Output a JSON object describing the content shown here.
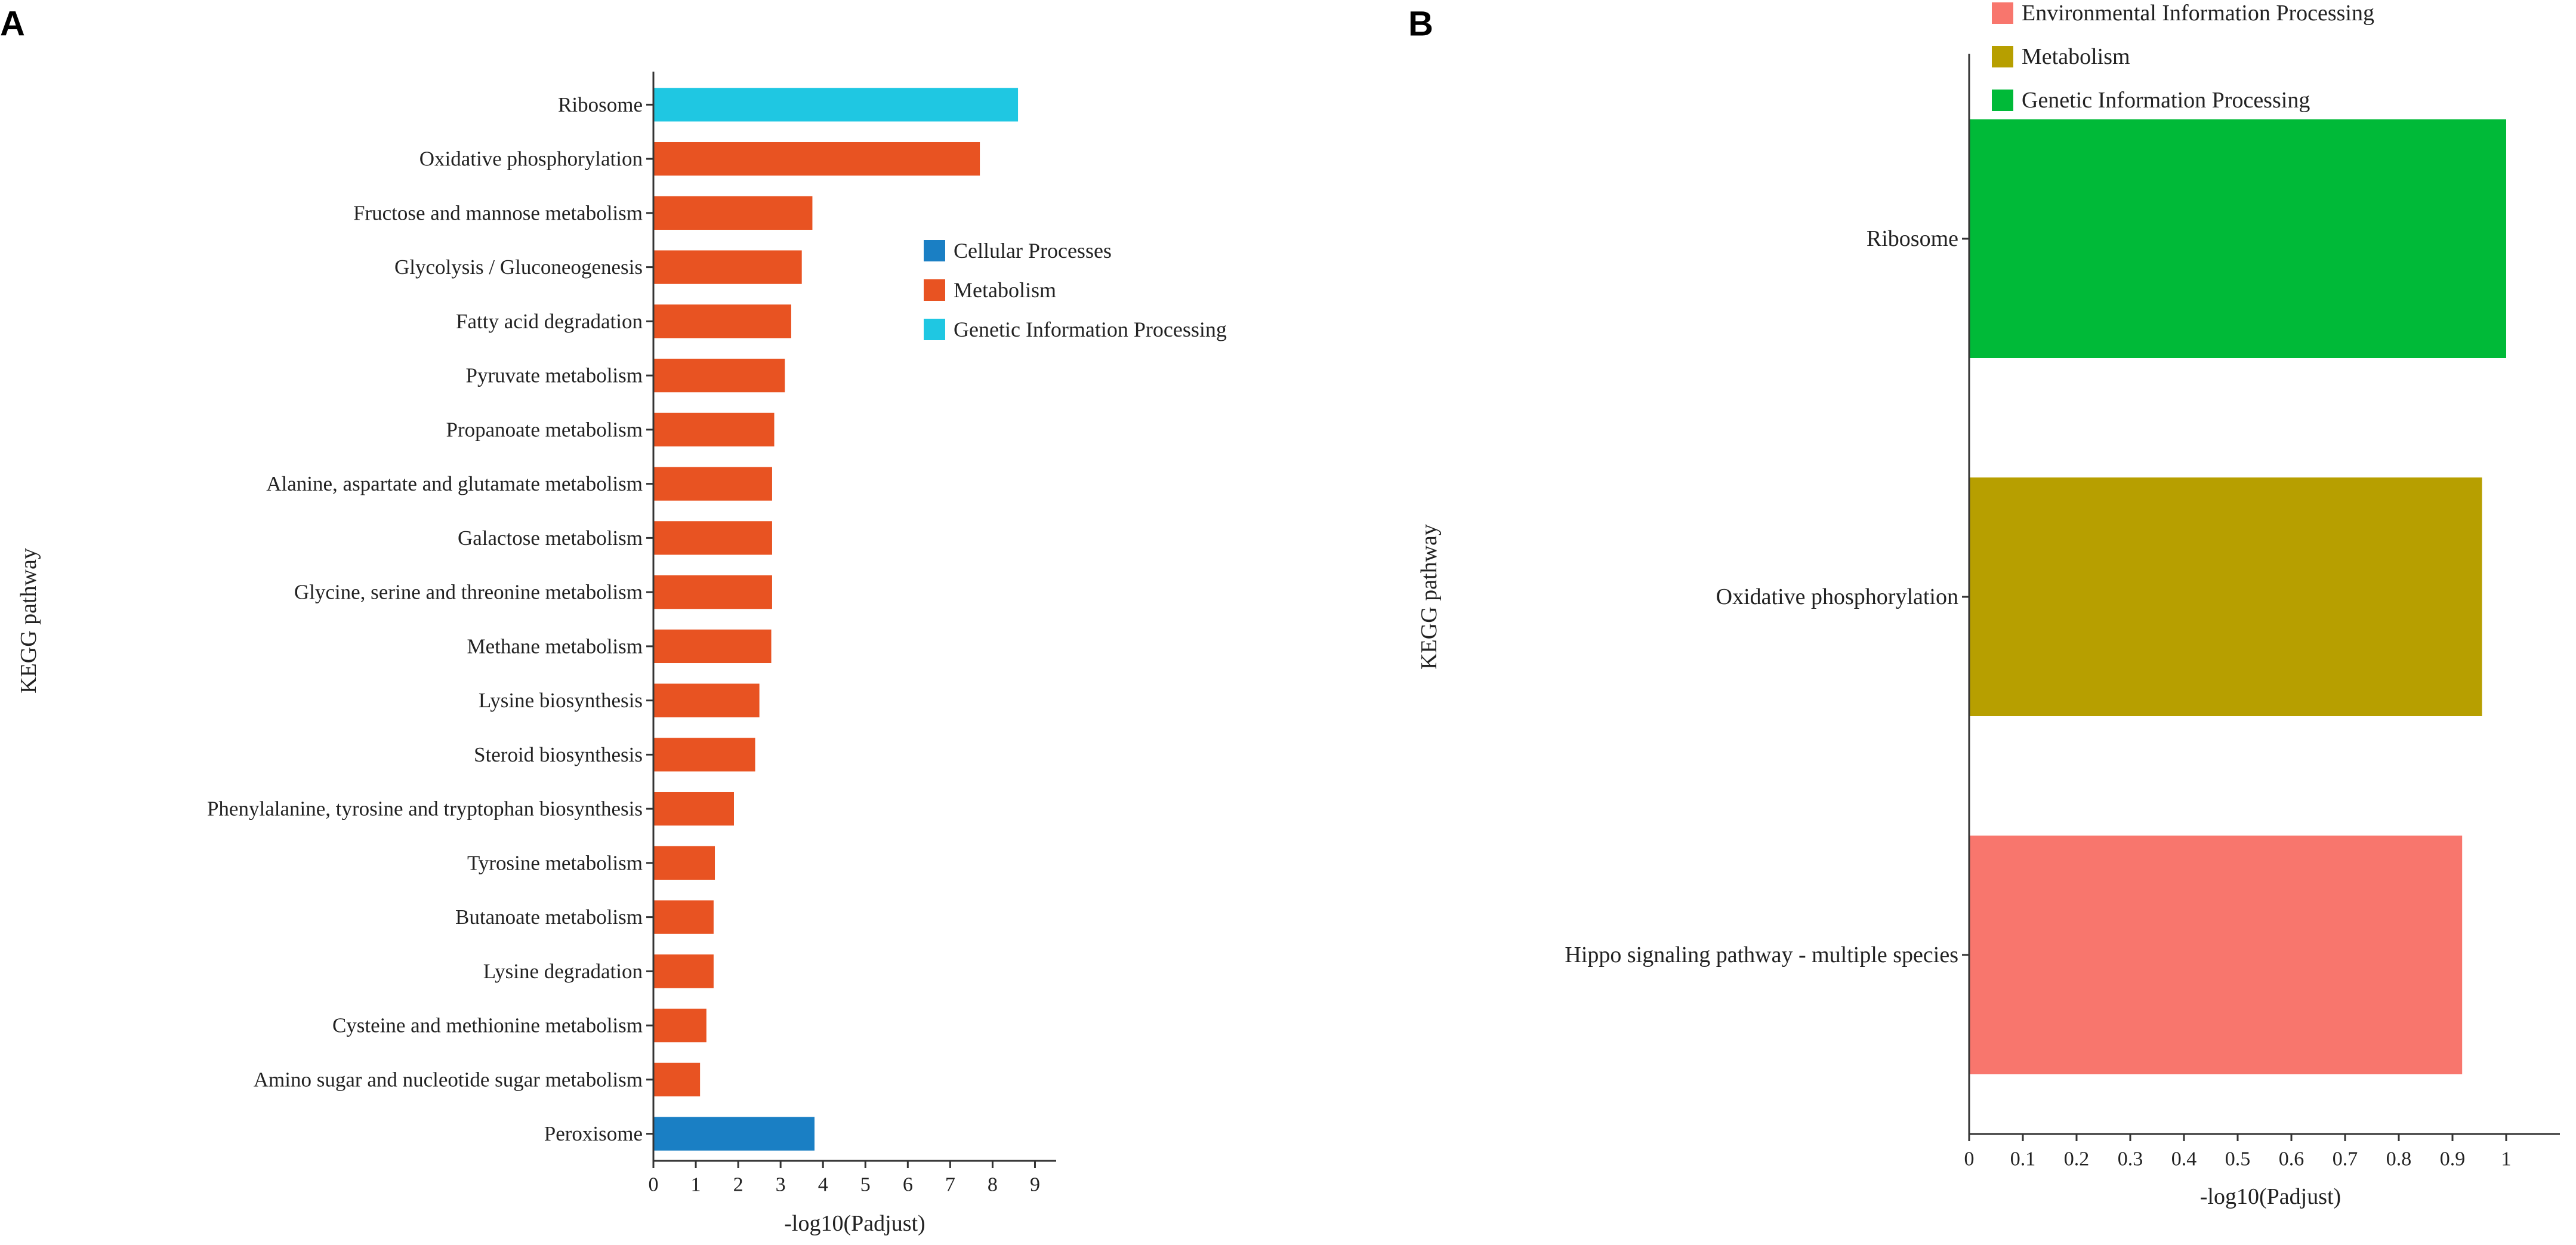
{
  "chart_data": [
    {
      "type": "bar",
      "orientation": "horizontal",
      "panel_label": "A",
      "title": "",
      "xlabel": "-log10(Padjust)",
      "ylabel": "KEGG pathway",
      "xlim": [
        0,
        9.5
      ],
      "xticks": [
        "0",
        "1",
        "2",
        "3",
        "4",
        "5",
        "6",
        "7",
        "8",
        "9"
      ],
      "grid": false,
      "legend_position": "right",
      "legend": [
        {
          "name": "Cellular Processes",
          "color": "#1a7fc4"
        },
        {
          "name": "Metabolism",
          "color": "#e85322"
        },
        {
          "name": "Genetic Information Processing",
          "color": "#1fc7e2"
        }
      ],
      "categories": [
        "Ribosome",
        "Oxidative phosphorylation",
        "Fructose and mannose metabolism",
        "Glycolysis / Gluconeogenesis",
        "Fatty acid degradation",
        "Pyruvate metabolism",
        "Propanoate metabolism",
        "Alanine, aspartate and glutamate metabolism",
        "Galactose metabolism",
        "Glycine, serine and threonine metabolism",
        "Methane metabolism",
        "Lysine biosynthesis",
        "Steroid biosynthesis",
        "Phenylalanine, tyrosine and tryptophan biosynthesis",
        "Tyrosine metabolism",
        "Butanoate metabolism",
        "Lysine degradation",
        "Cysteine and methionine metabolism",
        "Amino sugar and nucleotide sugar metabolism",
        "Peroxisome"
      ],
      "values": [
        8.6,
        7.7,
        3.75,
        3.5,
        3.25,
        3.1,
        2.85,
        2.8,
        2.8,
        2.8,
        2.78,
        2.5,
        2.4,
        1.9,
        1.45,
        1.42,
        1.42,
        1.25,
        1.1,
        3.8
      ],
      "groups": [
        "Genetic Information Processing",
        "Metabolism",
        "Metabolism",
        "Metabolism",
        "Metabolism",
        "Metabolism",
        "Metabolism",
        "Metabolism",
        "Metabolism",
        "Metabolism",
        "Metabolism",
        "Metabolism",
        "Metabolism",
        "Metabolism",
        "Metabolism",
        "Metabolism",
        "Metabolism",
        "Metabolism",
        "Metabolism",
        "Cellular Processes"
      ]
    },
    {
      "type": "bar",
      "orientation": "horizontal",
      "panel_label": "B",
      "title": "",
      "xlabel": "-log10(Padjust)",
      "ylabel": "KEGG pathway",
      "xlim": [
        0,
        1.1
      ],
      "xticks": [
        "0",
        "0.1",
        "0.2",
        "0.3",
        "0.4",
        "0.5",
        "0.6",
        "0.7",
        "0.8",
        "0.9",
        "1"
      ],
      "grid": false,
      "legend_position": "top",
      "legend": [
        {
          "name": "Environmental Information Processing",
          "color": "#f8766d"
        },
        {
          "name": "Metabolism",
          "color": "#b79f00"
        },
        {
          "name": "Genetic Information Processing",
          "color": "#00ba38"
        }
      ],
      "categories": [
        "Ribosome",
        "Oxidative phosphorylation",
        "Hippo signaling pathway - multiple species"
      ],
      "values": [
        1.0,
        0.955,
        0.918
      ],
      "groups": [
        "Genetic Information Processing",
        "Metabolism",
        "Environmental Information Processing"
      ]
    }
  ]
}
